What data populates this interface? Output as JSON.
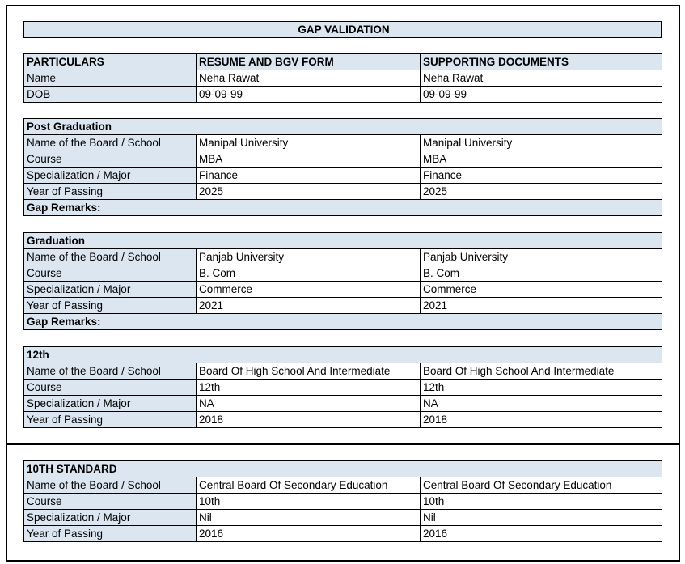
{
  "title": "GAP VALIDATION",
  "header": {
    "columns": [
      "PARTICULARS",
      "RESUME AND BGV FORM",
      "SUPPORTING DOCUMENTS"
    ],
    "rows": [
      {
        "label": "Name",
        "resume": "Neha Rawat",
        "docs": "Neha Rawat"
      },
      {
        "label": "DOB",
        "resume": "09-09-99",
        "docs": "09-09-99"
      }
    ]
  },
  "sections": [
    {
      "heading": "Post Graduation",
      "rows": [
        {
          "label": "Name of the Board / School",
          "resume": "Manipal University",
          "docs": "Manipal University"
        },
        {
          "label": "Course",
          "resume": "MBA",
          "docs": "MBA"
        },
        {
          "label": "Specialization / Major",
          "resume": "Finance",
          "docs": "Finance"
        },
        {
          "label": "Year of Passing",
          "resume": "2025",
          "docs": "2025"
        }
      ],
      "remarks": "Gap Remarks:"
    },
    {
      "heading": "Graduation",
      "rows": [
        {
          "label": "Name of the Board / School",
          "resume": "Panjab University",
          "docs": "Panjab University"
        },
        {
          "label": "Course",
          "resume": "B. Com",
          "docs": "B. Com"
        },
        {
          "label": "Specialization / Major",
          "resume": "Commerce",
          "docs": "Commerce"
        },
        {
          "label": "Year of Passing",
          "resume": "2021",
          "docs": "2021"
        }
      ],
      "remarks": "Gap Remarks:"
    },
    {
      "heading": "12th",
      "rows": [
        {
          "label": "Name of the Board / School",
          "resume": "Board Of High School And Intermediate",
          "docs": "Board Of High School And Intermediate"
        },
        {
          "label": "Course",
          "resume": "12th",
          "docs": "12th"
        },
        {
          "label": "Specialization / Major",
          "resume": "NA",
          "docs": "NA"
        },
        {
          "label": "Year of Passing",
          "resume": "2018",
          "docs": "2018"
        }
      ]
    },
    {
      "heading": "10TH STANDARD",
      "rows": [
        {
          "label": "Name of the Board / School",
          "resume": "Central Board Of Secondary Education",
          "docs": "Central Board Of Secondary Education"
        },
        {
          "label": "Course",
          "resume": "10th",
          "docs": "10th"
        },
        {
          "label": "Specialization / Major",
          "resume": "Nil",
          "docs": "Nil"
        },
        {
          "label": "Year of Passing",
          "resume": "2016",
          "docs": "2016"
        }
      ]
    }
  ]
}
